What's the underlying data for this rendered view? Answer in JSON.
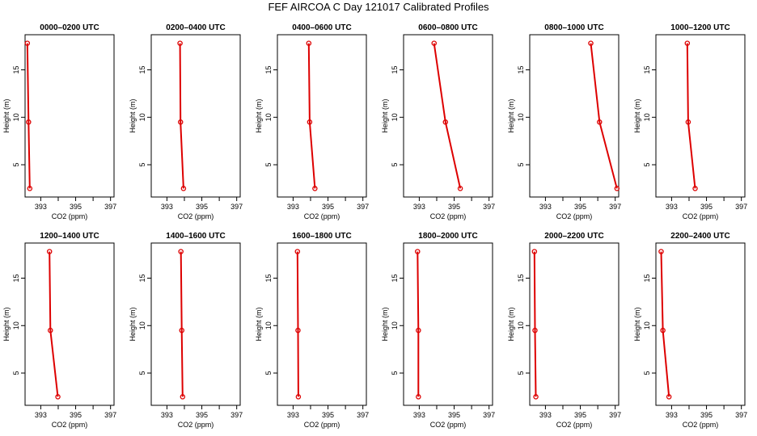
{
  "title": "FEF  AIRCOA C  Day 121017  Calibrated Profiles",
  "chart_data": {
    "type": "line",
    "xlabel": "CO2 (ppm)",
    "ylabel": "Height (m)",
    "xlim": [
      392.1,
      397.2
    ],
    "ylim": [
      1.6,
      18.7
    ],
    "xticks": [
      393,
      395,
      397
    ],
    "xticks_unlabeled": [
      394,
      396
    ],
    "yticks": [
      5,
      10,
      15
    ],
    "series_color": "#dd0000",
    "grid": false,
    "panels": [
      {
        "title": "0000–0200 UTC",
        "points": [
          [
            392.23,
            17.8
          ],
          [
            392.3,
            9.5
          ],
          [
            392.37,
            2.5
          ]
        ]
      },
      {
        "title": "0200–0400 UTC",
        "points": [
          [
            393.75,
            17.8
          ],
          [
            393.78,
            9.5
          ],
          [
            393.95,
            2.5
          ]
        ]
      },
      {
        "title": "0400–0600 UTC",
        "points": [
          [
            393.9,
            17.8
          ],
          [
            393.95,
            9.5
          ],
          [
            394.25,
            2.5
          ]
        ]
      },
      {
        "title": "0600–0800 UTC",
        "points": [
          [
            393.85,
            17.8
          ],
          [
            394.5,
            9.5
          ],
          [
            395.35,
            2.5
          ]
        ]
      },
      {
        "title": "0800–1000 UTC",
        "points": [
          [
            395.6,
            17.8
          ],
          [
            396.1,
            9.5
          ],
          [
            397.1,
            2.5
          ]
        ]
      },
      {
        "title": "1000–1200 UTC",
        "points": [
          [
            393.9,
            17.8
          ],
          [
            393.95,
            9.5
          ],
          [
            394.35,
            2.5
          ]
        ]
      },
      {
        "title": "1200–1400 UTC",
        "points": [
          [
            393.5,
            17.8
          ],
          [
            393.55,
            9.5
          ],
          [
            393.98,
            2.5
          ]
        ]
      },
      {
        "title": "1400–1600 UTC",
        "points": [
          [
            393.8,
            17.8
          ],
          [
            393.85,
            9.5
          ],
          [
            393.9,
            2.5
          ]
        ]
      },
      {
        "title": "1600–1800 UTC",
        "points": [
          [
            393.25,
            17.8
          ],
          [
            393.28,
            9.5
          ],
          [
            393.3,
            2.5
          ]
        ]
      },
      {
        "title": "1800–2000 UTC",
        "points": [
          [
            392.9,
            17.8
          ],
          [
            392.95,
            9.5
          ],
          [
            392.95,
            2.5
          ]
        ]
      },
      {
        "title": "2000–2200 UTC",
        "points": [
          [
            392.37,
            17.8
          ],
          [
            392.4,
            9.5
          ],
          [
            392.45,
            2.5
          ]
        ]
      },
      {
        "title": "2200–2400 UTC",
        "points": [
          [
            392.4,
            17.8
          ],
          [
            392.5,
            9.5
          ],
          [
            392.85,
            2.5
          ]
        ]
      }
    ]
  }
}
